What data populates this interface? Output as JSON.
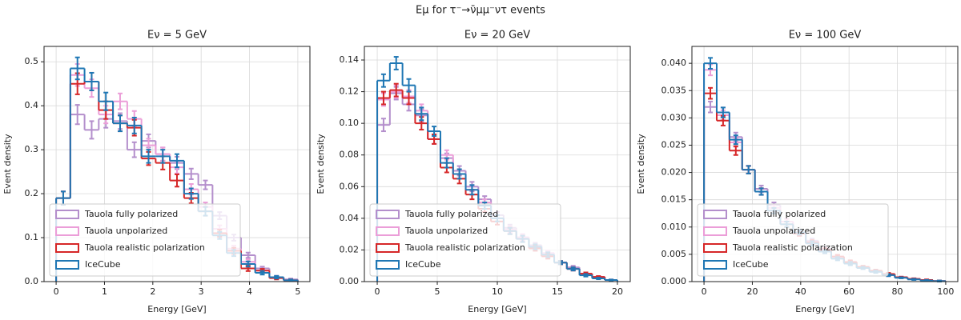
{
  "title": "Eμ for τ⁻→ν̄μμ⁻ντ events",
  "chart_data": [
    {
      "type": "histogram",
      "title": "Eν = 5 GeV",
      "x_label": "Energy [GeV]",
      "y_label": "Event density",
      "xlim": [
        -0.25,
        5.25
      ],
      "ylim": [
        0,
        0.535
      ],
      "xticks": [
        0,
        1,
        2,
        3,
        4,
        5
      ],
      "yticks": [
        {
          "value": 0,
          "label": "0.0"
        },
        0.1,
        0.2,
        0.3,
        0.4,
        0.5
      ],
      "grid": true,
      "legend": "lower left",
      "bins": [
        0,
        0.294,
        0.588,
        0.882,
        1.176,
        1.471,
        1.765,
        2.059,
        2.353,
        2.647,
        2.941,
        3.235,
        3.529,
        3.824,
        4.118,
        4.412,
        4.706,
        5
      ],
      "series": [
        {
          "name": "Tauola fully polarized",
          "color": "#b48fcc",
          "values": [
            0.19,
            0.38,
            0.345,
            0.37,
            0.365,
            0.3,
            0.32,
            0.29,
            0.27,
            0.245,
            0.22,
            0.15,
            0.1,
            0.06,
            0.03,
            0.01,
            0.005
          ],
          "errors": [
            0.015,
            0.022,
            0.02,
            0.02,
            0.018,
            0.017,
            0.015,
            0.015,
            0.014,
            0.012,
            0.01,
            0.008,
            0.007,
            0.006,
            0.004,
            0.003,
            0.002
          ]
        },
        {
          "name": "Tauola unpolarized",
          "color": "#eb9ed8",
          "values": [
            0.19,
            0.47,
            0.44,
            0.38,
            0.41,
            0.37,
            0.31,
            0.29,
            0.26,
            0.21,
            0.17,
            0.12,
            0.075,
            0.045,
            0.025,
            0.01,
            0.003
          ],
          "errors": [
            0.015,
            0.025,
            0.02,
            0.02,
            0.018,
            0.018,
            0.015,
            0.015,
            0.014,
            0.012,
            0.01,
            0.008,
            0.007,
            0.006,
            0.004,
            0.003,
            0.002
          ]
        },
        {
          "name": "Tauola realistic polarization",
          "color": "#d62728",
          "values": [
            0.19,
            0.45,
            0.455,
            0.39,
            0.36,
            0.35,
            0.28,
            0.27,
            0.23,
            0.19,
            0.16,
            0.11,
            0.07,
            0.03,
            0.025,
            0.008,
            0.003
          ],
          "errors": [
            0.015,
            0.024,
            0.02,
            0.02,
            0.018,
            0.018,
            0.015,
            0.015,
            0.014,
            0.012,
            0.01,
            0.008,
            0.007,
            0.006,
            0.004,
            0.003,
            0.002
          ]
        },
        {
          "name": "IceCube",
          "color": "#1f77b4",
          "values": [
            0.19,
            0.485,
            0.455,
            0.41,
            0.36,
            0.355,
            0.285,
            0.285,
            0.275,
            0.2,
            0.16,
            0.105,
            0.065,
            0.04,
            0.02,
            0.01,
            0.003
          ],
          "errors": [
            0.015,
            0.025,
            0.02,
            0.02,
            0.018,
            0.018,
            0.015,
            0.015,
            0.015,
            0.012,
            0.01,
            0.008,
            0.007,
            0.006,
            0.004,
            0.003,
            0.002
          ]
        }
      ]
    },
    {
      "type": "histogram",
      "title": "Eν = 20 GeV",
      "x_label": "Energy [GeV]",
      "y_label": "Event density",
      "xlim": [
        -1.07,
        21.07
      ],
      "ylim": [
        0,
        0.1486
      ],
      "xticks": [
        0,
        5,
        10,
        15,
        20
      ],
      "yticks": [
        {
          "value": 0,
          "label": "0.00"
        },
        0.02,
        0.04,
        0.06,
        0.08,
        {
          "value": 0.1,
          "label": "0.10"
        },
        0.12,
        0.14
      ],
      "grid": true,
      "legend": "lower left",
      "bins": [
        0,
        1.053,
        2.105,
        3.158,
        4.211,
        5.263,
        6.316,
        7.368,
        8.421,
        9.474,
        10.526,
        11.579,
        12.632,
        13.684,
        14.737,
        15.789,
        16.842,
        17.895,
        18.947,
        20
      ],
      "series": [
        {
          "name": "Tauola fully polarized",
          "color": "#b48fcc",
          "values": [
            0.099,
            0.119,
            0.112,
            0.105,
            0.09,
            0.078,
            0.07,
            0.06,
            0.052,
            0.042,
            0.034,
            0.028,
            0.023,
            0.018,
            0.012,
            0.009,
            0.005,
            0.003,
            0.001
          ],
          "errors": [
            0.004,
            0.004,
            0.004,
            0.004,
            0.003,
            0.003,
            0.003,
            0.003,
            0.002,
            0.002,
            0.002,
            0.002,
            0.0015,
            0.0015,
            0.001,
            0.001,
            0.0008,
            0.0005,
            0.0003
          ]
        },
        {
          "name": "Tauola unpolarized",
          "color": "#eb9ed8",
          "values": [
            0.115,
            0.12,
            0.117,
            0.108,
            0.09,
            0.08,
            0.068,
            0.058,
            0.05,
            0.04,
            0.033,
            0.028,
            0.022,
            0.018,
            0.012,
            0.008,
            0.005,
            0.003,
            0.001
          ],
          "errors": [
            0.004,
            0.004,
            0.004,
            0.004,
            0.003,
            0.003,
            0.003,
            0.003,
            0.002,
            0.002,
            0.002,
            0.002,
            0.0015,
            0.0015,
            0.001,
            0.001,
            0.0008,
            0.0005,
            0.0003
          ]
        },
        {
          "name": "Tauola realistic polarization",
          "color": "#d62728",
          "values": [
            0.116,
            0.121,
            0.116,
            0.1,
            0.09,
            0.072,
            0.065,
            0.055,
            0.046,
            0.038,
            0.032,
            0.027,
            0.021,
            0.016,
            0.012,
            0.008,
            0.005,
            0.003,
            0.001
          ],
          "errors": [
            0.004,
            0.004,
            0.004,
            0.004,
            0.003,
            0.003,
            0.003,
            0.003,
            0.002,
            0.002,
            0.002,
            0.002,
            0.0015,
            0.0015,
            0.001,
            0.001,
            0.0008,
            0.0005,
            0.0003
          ]
        },
        {
          "name": "IceCube",
          "color": "#1f77b4",
          "values": [
            0.127,
            0.138,
            0.124,
            0.106,
            0.095,
            0.075,
            0.068,
            0.058,
            0.048,
            0.04,
            0.032,
            0.027,
            0.022,
            0.017,
            0.012,
            0.008,
            0.004,
            0.002,
            0.001
          ],
          "errors": [
            0.004,
            0.004,
            0.004,
            0.004,
            0.003,
            0.003,
            0.003,
            0.003,
            0.002,
            0.002,
            0.002,
            0.002,
            0.0015,
            0.0015,
            0.001,
            0.001,
            0.0008,
            0.0005,
            0.0003
          ]
        }
      ]
    },
    {
      "type": "histogram",
      "title": "Eν = 100 GeV",
      "x_label": "Energy [GeV]",
      "y_label": "Event density",
      "xlim": [
        -5,
        105
      ],
      "ylim": [
        0,
        0.0431
      ],
      "xticks": [
        0,
        20,
        40,
        60,
        80,
        100
      ],
      "yticks": [
        {
          "value": 0,
          "label": "0.000"
        },
        0.005,
        {
          "value": 0.01,
          "label": "0.010"
        },
        0.015,
        {
          "value": 0.02,
          "label": "0.020"
        },
        0.025,
        {
          "value": 0.03,
          "label": "0.030"
        },
        0.035,
        {
          "value": 0.04,
          "label": "0.040"
        }
      ],
      "grid": true,
      "legend": "lower left",
      "bins": [
        0,
        5.263,
        10.526,
        15.789,
        21.053,
        26.316,
        31.579,
        36.842,
        42.105,
        47.368,
        52.632,
        57.895,
        63.158,
        68.421,
        73.684,
        78.947,
        84.211,
        89.474,
        94.737,
        100
      ],
      "series": [
        {
          "name": "Tauola fully polarized",
          "color": "#b48fcc",
          "values": [
            0.032,
            0.031,
            0.0265,
            0.0205,
            0.017,
            0.014,
            0.011,
            0.009,
            0.0075,
            0.006,
            0.0045,
            0.0035,
            0.0025,
            0.0018,
            0.0012,
            0.0008,
            0.0005,
            0.0002,
            0.0001
          ],
          "errors": [
            0.001,
            0.0009,
            0.0008,
            0.0007,
            0.0006,
            0.0005,
            0.0005,
            0.0004,
            0.0004,
            0.0003,
            0.0003,
            0.0003,
            0.0002,
            0.0002,
            0.0002,
            0.0001,
            0.0001,
            0.0001,
            0.0001
          ]
        },
        {
          "name": "Tauola unpolarized",
          "color": "#eb9ed8",
          "values": [
            0.0388,
            0.0305,
            0.0255,
            0.0205,
            0.0165,
            0.0135,
            0.011,
            0.0088,
            0.007,
            0.0055,
            0.0045,
            0.0035,
            0.0025,
            0.0019,
            0.0012,
            0.0008,
            0.0005,
            0.0003,
            0.0001
          ],
          "errors": [
            0.001,
            0.0009,
            0.0008,
            0.0007,
            0.0006,
            0.0005,
            0.0005,
            0.0004,
            0.0004,
            0.0003,
            0.0003,
            0.0003,
            0.0002,
            0.0002,
            0.0002,
            0.0001,
            0.0001,
            0.0001,
            0.0001
          ]
        },
        {
          "name": "Tauola realistic polarization",
          "color": "#d62728",
          "values": [
            0.0345,
            0.0295,
            0.024,
            0.0205,
            0.0165,
            0.013,
            0.0105,
            0.0088,
            0.0072,
            0.0058,
            0.0046,
            0.0036,
            0.0027,
            0.002,
            0.0014,
            0.0008,
            0.0005,
            0.0003,
            0.0001
          ],
          "errors": [
            0.001,
            0.0009,
            0.0008,
            0.0007,
            0.0006,
            0.0005,
            0.0005,
            0.0004,
            0.0004,
            0.0003,
            0.0003,
            0.0003,
            0.0002,
            0.0002,
            0.0002,
            0.0001,
            0.0001,
            0.0001,
            0.0001
          ]
        },
        {
          "name": "IceCube",
          "color": "#1f77b4",
          "values": [
            0.04,
            0.031,
            0.026,
            0.0205,
            0.0165,
            0.013,
            0.0105,
            0.009,
            0.007,
            0.0055,
            0.0042,
            0.0033,
            0.0025,
            0.0018,
            0.0012,
            0.0007,
            0.0004,
            0.0002,
            0.0001
          ],
          "errors": [
            0.001,
            0.0009,
            0.0008,
            0.0007,
            0.0006,
            0.0005,
            0.0005,
            0.0004,
            0.0004,
            0.0003,
            0.0003,
            0.0003,
            0.0002,
            0.0002,
            0.0002,
            0.0001,
            0.0001,
            0.0001,
            0.0001
          ]
        }
      ]
    }
  ]
}
